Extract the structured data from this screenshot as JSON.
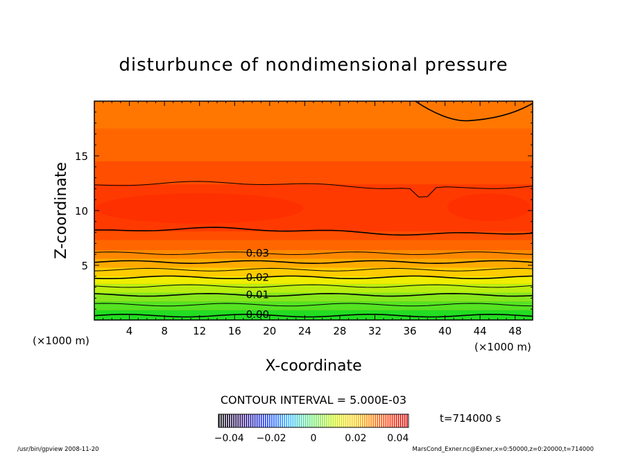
{
  "chart_data": {
    "type": "contour",
    "title": "disturbunce of nondimensional pressure",
    "xlabel": "X-coordinate",
    "ylabel": "Z-coordinate",
    "x_unit_left": "(×1000 m)",
    "x_unit_right": "(×1000 m)",
    "xlim": [
      0,
      50
    ],
    "ylim": [
      0,
      20
    ],
    "xticks": [
      4,
      8,
      12,
      16,
      20,
      24,
      28,
      32,
      36,
      40,
      44,
      48
    ],
    "yticks": [
      5,
      10,
      15
    ],
    "contour_interval_text": "CONTOUR INTERVAL = 5.000E-03",
    "contour_labels": [
      {
        "text": "0.00",
        "x": 17.3,
        "z": 0.5
      },
      {
        "text": "0.01",
        "x": 17.3,
        "z": 2.3
      },
      {
        "text": "0.02",
        "x": 17.3,
        "z": 3.9
      },
      {
        "text": "0.03",
        "x": 17.3,
        "z": 6.1
      }
    ],
    "colorbar": {
      "tick_labels": [
        "−0.04",
        "−0.02",
        "0",
        "0.02",
        "0.04"
      ],
      "range": [
        -0.045,
        0.045
      ]
    },
    "time_label": "t=714000 s",
    "footer_left": "/usr/bin/gpview  2008-11-20",
    "footer_right": "MarsCond_Exner.nc@Exner,x=0:50000,z=0:20000,t=714000"
  }
}
